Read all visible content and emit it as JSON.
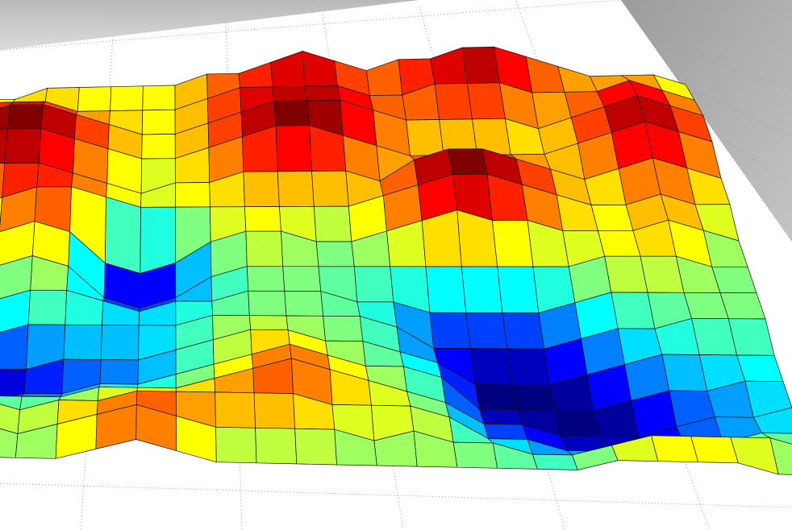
{
  "chart_data": {
    "type": "surface",
    "colormap": "jet",
    "edgecolor": "#111111",
    "z": [
      [
        5,
        5,
        5,
        6,
        6,
        6,
        6,
        6,
        7,
        7,
        8,
        9,
        8,
        7,
        8,
        8,
        9,
        9,
        8,
        7,
        6,
        6,
        6,
        5
      ],
      [
        6,
        7,
        7,
        7,
        6,
        6,
        6,
        6,
        7,
        8,
        8,
        8,
        8,
        7,
        7,
        8,
        8,
        8,
        7,
        7,
        7,
        8,
        7,
        6
      ],
      [
        8,
        8,
        9,
        9,
        8,
        7,
        6,
        6,
        7,
        8,
        9,
        9,
        9,
        8,
        7,
        7,
        7,
        7,
        6,
        7,
        8,
        9,
        8,
        7
      ],
      [
        9,
        9,
        9,
        9,
        8,
        7,
        6,
        6,
        7,
        8,
        9,
        9,
        8,
        7,
        6,
        6,
        6,
        6,
        6,
        7,
        8,
        9,
        8,
        7
      ],
      [
        7,
        8,
        8,
        8,
        7,
        6,
        5,
        6,
        6,
        7,
        7,
        7,
        7,
        6,
        8,
        9,
        9,
        8,
        7,
        6,
        7,
        8,
        7,
        6
      ],
      [
        6,
        6,
        7,
        8,
        8,
        7,
        6,
        6,
        6,
        6,
        6,
        6,
        6,
        7,
        8,
        9,
        9,
        8,
        7,
        6,
        6,
        7,
        6,
        6
      ],
      [
        5,
        5,
        6,
        7,
        6,
        3,
        2,
        3,
        5,
        6,
        6,
        5,
        5,
        6,
        7,
        8,
        7,
        7,
        6,
        6,
        6,
        7,
        6,
        5
      ],
      [
        4,
        4,
        5,
        6,
        5,
        2,
        1,
        2,
        4,
        5,
        5,
        5,
        5,
        5,
        5,
        5,
        5,
        5,
        5,
        6,
        6,
        6,
        5,
        5
      ],
      [
        3,
        4,
        4,
        5,
        5,
        4,
        3,
        4,
        4,
        5,
        5,
        5,
        4,
        4,
        3,
        3,
        3,
        3,
        4,
        5,
        5,
        5,
        5,
        5
      ],
      [
        2,
        3,
        3,
        4,
        4,
        4,
        4,
        4,
        5,
        5,
        5,
        5,
        5,
        4,
        2,
        2,
        2,
        2,
        3,
        4,
        4,
        5,
        5,
        5
      ],
      [
        1,
        1,
        2,
        2,
        3,
        3,
        3,
        4,
        5,
        6,
        6,
        5,
        5,
        4,
        3,
        1,
        1,
        1,
        2,
        3,
        4,
        4,
        4,
        4
      ],
      [
        1,
        1,
        1,
        2,
        2,
        3,
        3,
        4,
        5,
        6,
        7,
        6,
        5,
        5,
        4,
        1,
        1,
        1,
        1,
        2,
        3,
        3,
        4,
        4
      ],
      [
        3,
        3,
        4,
        4,
        4,
        5,
        5,
        5,
        6,
        7,
        8,
        7,
        6,
        5,
        4,
        2,
        2,
        1,
        1,
        1,
        2,
        3,
        3,
        4
      ],
      [
        5,
        6,
        6,
        5,
        6,
        6,
        7,
        7,
        7,
        7,
        7,
        6,
        6,
        6,
        5,
        3,
        3,
        2,
        2,
        2,
        3,
        3,
        4,
        4
      ],
      [
        6,
        6,
        6,
        5,
        6,
        7,
        8,
        7,
        6,
        6,
        6,
        6,
        5,
        6,
        5,
        5,
        4,
        4,
        5,
        6,
        6,
        6,
        6,
        5
      ],
      [
        5,
        6,
        5,
        5,
        5,
        6,
        7,
        6,
        5,
        5,
        5,
        5,
        5,
        5,
        5,
        5,
        5,
        5,
        6,
        6,
        6,
        6,
        5,
        5
      ]
    ]
  }
}
